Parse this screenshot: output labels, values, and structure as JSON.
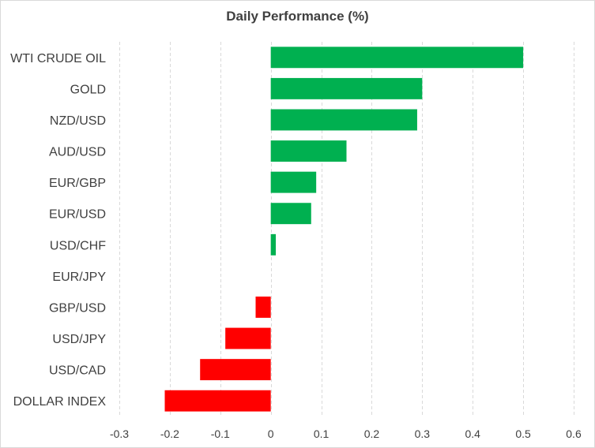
{
  "chart_data": {
    "type": "bar",
    "orientation": "horizontal",
    "title": "Daily Performance  (%)",
    "xlabel": "",
    "ylabel": "",
    "categories": [
      "WTI CRUDE OIL",
      "GOLD",
      "NZD/USD",
      "AUD/USD",
      "EUR/GBP",
      "EUR/USD",
      "USD/CHF",
      "EUR/JPY",
      "GBP/USD",
      "USD/JPY",
      "USD/CAD",
      "DOLLAR INDEX"
    ],
    "values": [
      0.5,
      0.3,
      0.29,
      0.15,
      0.09,
      0.08,
      0.01,
      0.0,
      -0.03,
      -0.09,
      -0.14,
      -0.21
    ],
    "xlim": [
      -0.3,
      0.6
    ],
    "xticks": [
      "-0.3",
      "-0.2",
      "-0.1",
      "0",
      "0.1",
      "0.2",
      "0.3",
      "0.4",
      "0.5",
      "0.6"
    ],
    "xtick_values": [
      -0.3,
      -0.2,
      -0.1,
      0,
      0.1,
      0.2,
      0.3,
      0.4,
      0.5,
      0.6
    ],
    "grid": "vertical-dashed",
    "legend": "none",
    "colors": {
      "positive": "#00b050",
      "negative": "#ff0000",
      "grid": "#d9d9d9",
      "text": "#404040"
    }
  }
}
